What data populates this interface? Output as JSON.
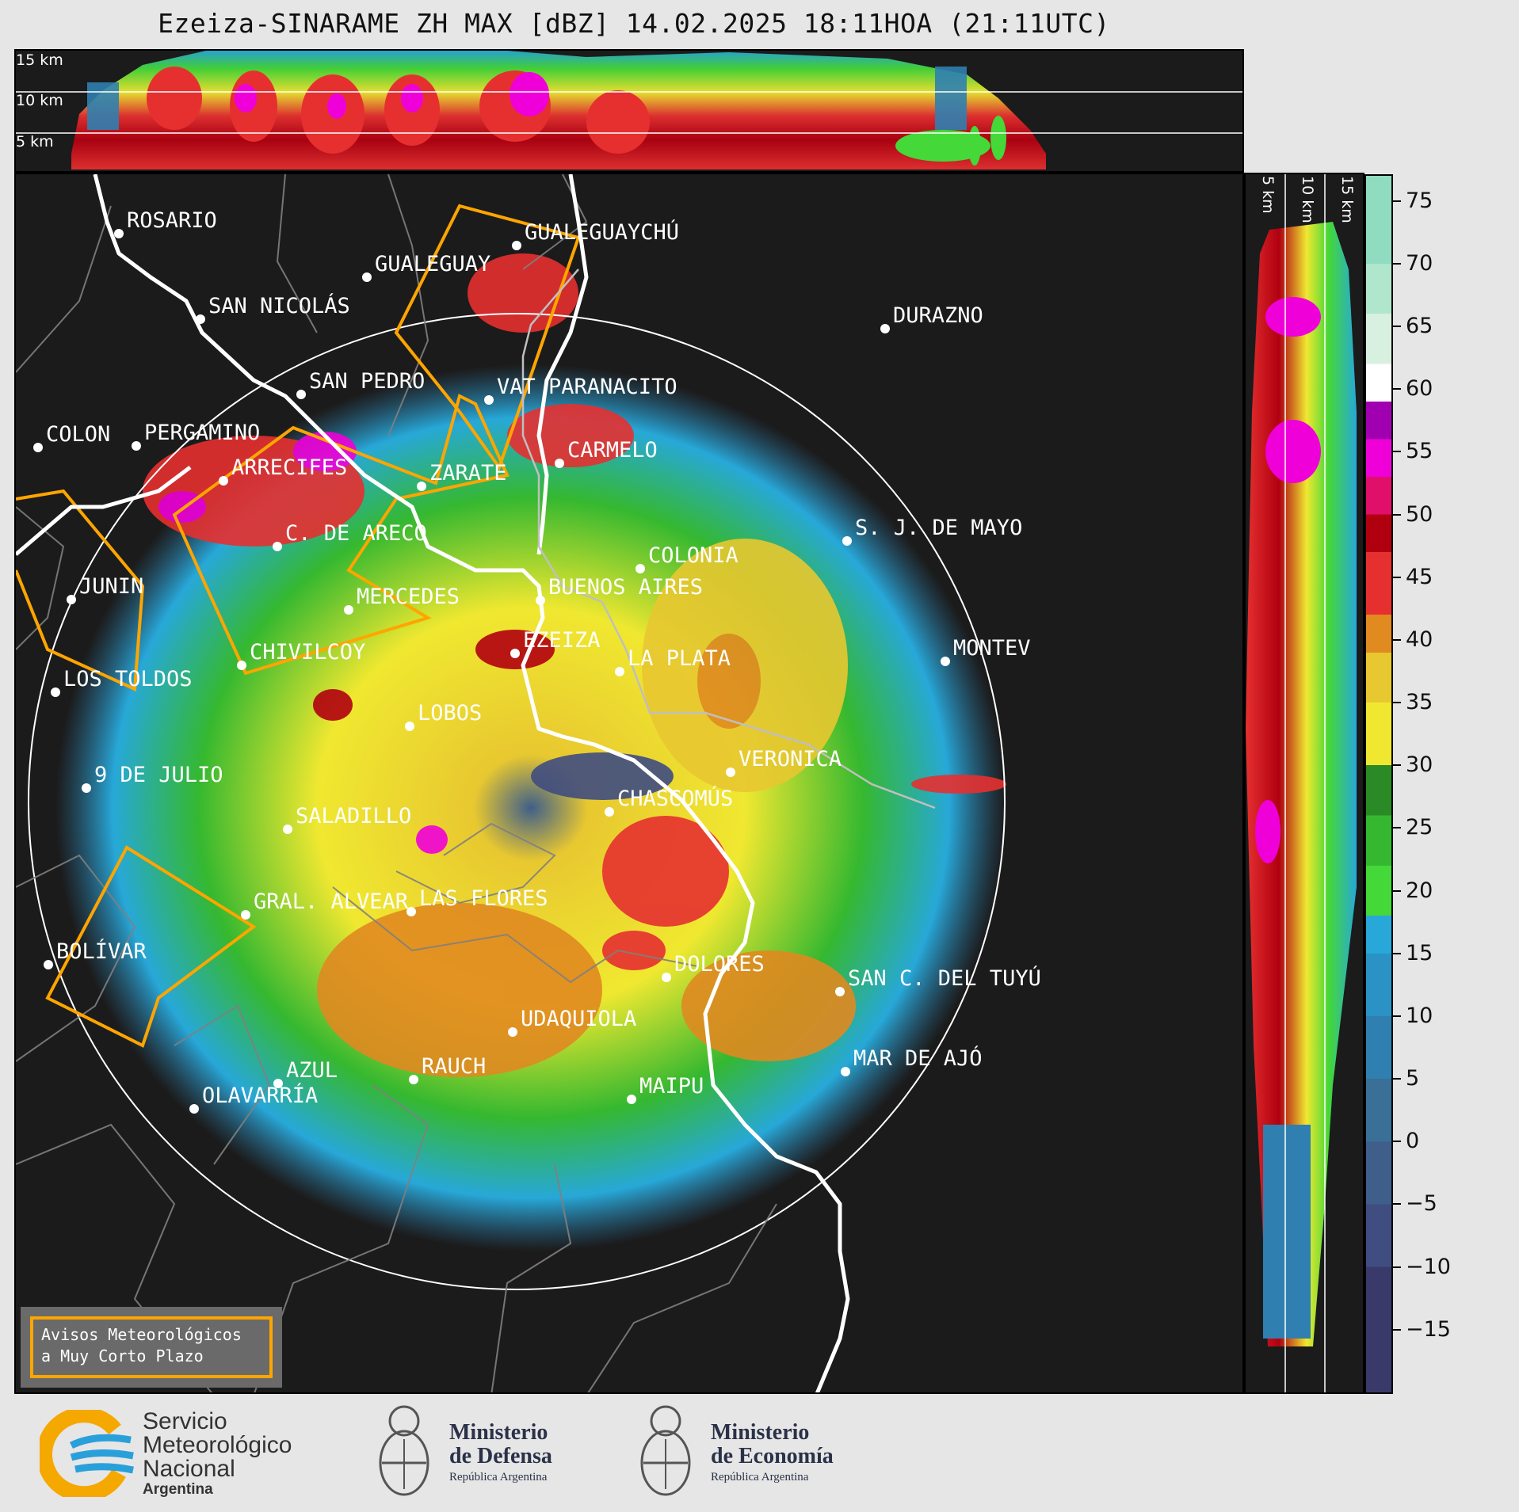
{
  "title": "Ezeiza-SINARAME ZH MAX [dBZ] 14.02.2025 18:11HOA (21:11UTC)",
  "top_panel": {
    "height_labels": [
      "15 km",
      "10 km",
      "5 km"
    ]
  },
  "side_panel": {
    "height_labels": [
      "5 km",
      "10 km",
      "15 km"
    ]
  },
  "colorbar": {
    "ticks": [
      "75",
      "70",
      "65",
      "60",
      "55",
      "50",
      "45",
      "40",
      "35",
      "30",
      "25",
      "20",
      "15",
      "10",
      "5",
      "0",
      "−5",
      "−10",
      "−15"
    ],
    "range": [
      -20,
      77
    ],
    "stops": [
      {
        "from": -20,
        "color": "#3a3a6a"
      },
      {
        "from": -10,
        "color": "#3f4d80"
      },
      {
        "from": -5,
        "color": "#3f5f8a"
      },
      {
        "from": 0,
        "color": "#3a6f98"
      },
      {
        "from": 5,
        "color": "#2f80b0"
      },
      {
        "from": 10,
        "color": "#2a92c4"
      },
      {
        "from": 15,
        "color": "#27a8d8"
      },
      {
        "from": 18,
        "color": "#44d838"
      },
      {
        "from": 22,
        "color": "#35b830"
      },
      {
        "from": 26,
        "color": "#2a8a25"
      },
      {
        "from": 30,
        "color": "#f0e830"
      },
      {
        "from": 35,
        "color": "#e8c830"
      },
      {
        "from": 39,
        "color": "#e08a20"
      },
      {
        "from": 42,
        "color": "#e63030"
      },
      {
        "from": 47,
        "color": "#b00010"
      },
      {
        "from": 50,
        "color": "#e0106a"
      },
      {
        "from": 53,
        "color": "#f000d8"
      },
      {
        "from": 56,
        "color": "#a000b0"
      },
      {
        "from": 59,
        "color": "#ffffff"
      },
      {
        "from": 62,
        "color": "#d8f0e0"
      },
      {
        "from": 66,
        "color": "#b0e6cc"
      },
      {
        "from": 70,
        "color": "#90dcc0"
      }
    ]
  },
  "cities": [
    {
      "name": "ROSARIO"
    },
    {
      "name": "GUALEGUAYCHÚ"
    },
    {
      "name": "GUALEGUAY"
    },
    {
      "name": "SAN NICOLÁS"
    },
    {
      "name": "DURAZNO"
    },
    {
      "name": "SAN PEDRO"
    },
    {
      "name": "VAT PARANACITO"
    },
    {
      "name": "COLON"
    },
    {
      "name": "PERGAMINO"
    },
    {
      "name": "CARMELO"
    },
    {
      "name": "ARRECIFES"
    },
    {
      "name": "ZARATE"
    },
    {
      "name": "S. J. DE MAYO"
    },
    {
      "name": "C. DE ARECO"
    },
    {
      "name": "COLONIA"
    },
    {
      "name": "JUNIN"
    },
    {
      "name": "BUENOS AIRES"
    },
    {
      "name": "MERCEDES"
    },
    {
      "name": "MONTEV"
    },
    {
      "name": "EZEIZA"
    },
    {
      "name": "CHIVILCOY"
    },
    {
      "name": "LA PLATA"
    },
    {
      "name": "LOS TOLDOS"
    },
    {
      "name": "LOBOS"
    },
    {
      "name": "VERONICA"
    },
    {
      "name": "9 DE JULIO"
    },
    {
      "name": "CHASCOMÚS"
    },
    {
      "name": "SALADILLO"
    },
    {
      "name": "GRAL. ALVEAR"
    },
    {
      "name": "LAS FLORES"
    },
    {
      "name": "BOLÍVAR"
    },
    {
      "name": "DOLORES"
    },
    {
      "name": "SAN C. DEL TUYÚ"
    },
    {
      "name": "UDAQUIOLA"
    },
    {
      "name": "MAR DE AJÓ"
    },
    {
      "name": "AZUL"
    },
    {
      "name": "RAUCH"
    },
    {
      "name": "MAIPU"
    },
    {
      "name": "OLAVARRÍA"
    }
  ],
  "warning_box": {
    "line1": "Avisos Meteorológicos",
    "line2": "a Muy Corto Plazo"
  },
  "logos": {
    "smn": {
      "line1": "Servicio",
      "line2": "Meteorológico",
      "line3": "Nacional",
      "line4": "Argentina"
    },
    "defensa": {
      "line1": "Ministerio",
      "line2": "de Defensa",
      "line3": "República Argentina"
    },
    "economia": {
      "line1": "Ministerio",
      "line2": "de Economía",
      "line3": "República Argentina"
    }
  },
  "colors": {
    "warning_outline": "#ffa500",
    "coast": "#ffffff",
    "boundaries": "#808080",
    "background": "#1b1b1b"
  }
}
